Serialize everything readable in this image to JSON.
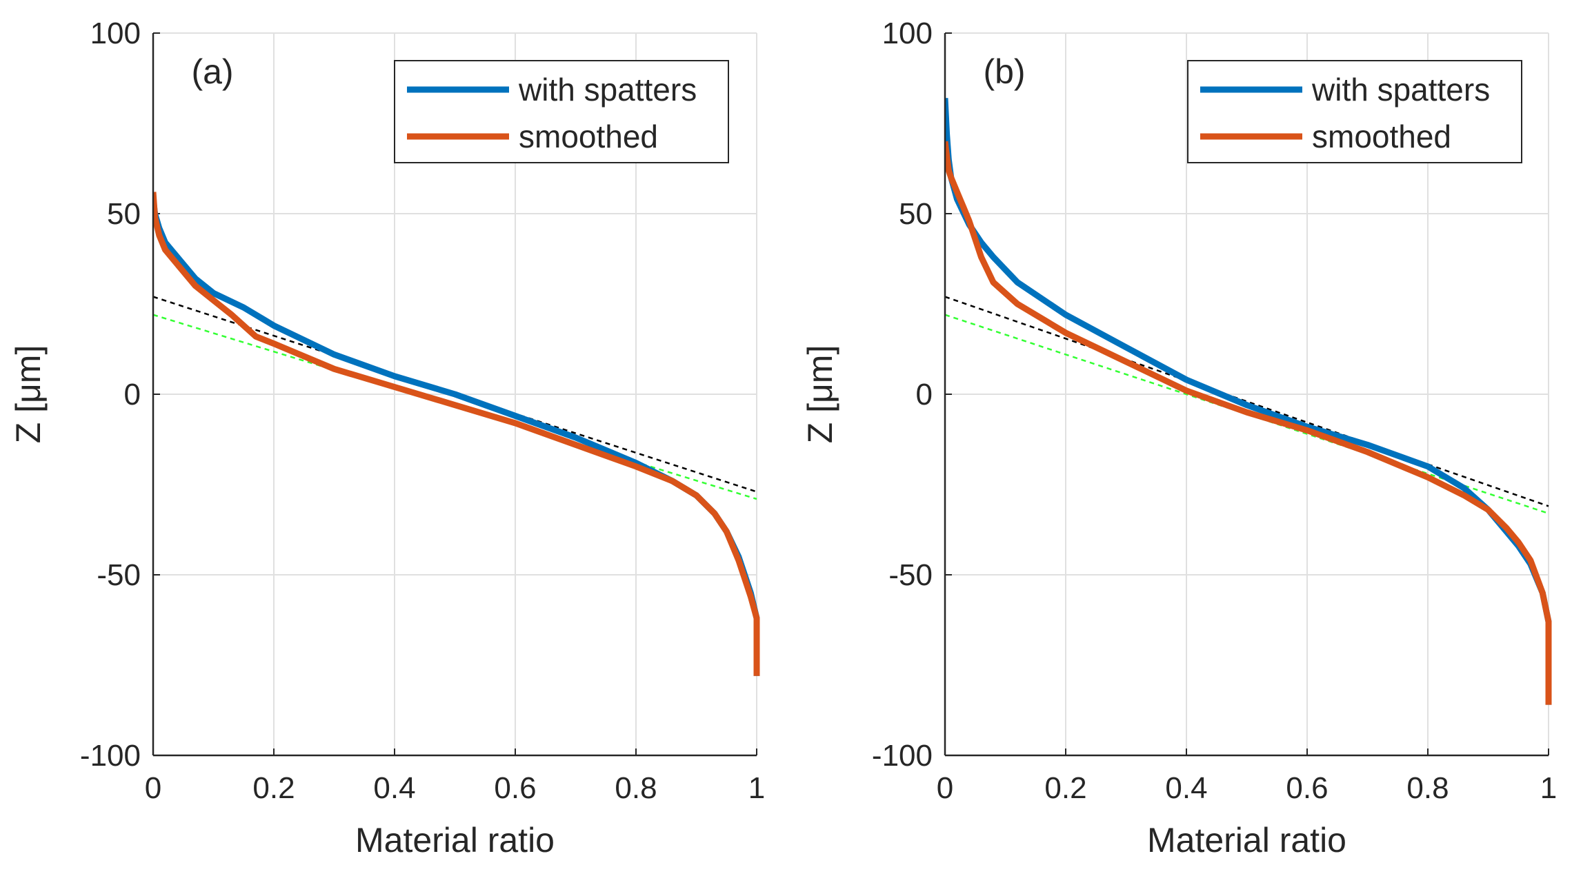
{
  "chart_data": [
    {
      "type": "line",
      "panel_label": "(a)",
      "xlabel": "Material ratio",
      "ylabel": "Z  [μm]",
      "xlim": [
        0,
        1
      ],
      "ylim": [
        -100,
        100
      ],
      "xticks": [
        "0",
        "0.2",
        "0.4",
        "0.6",
        "0.8",
        "1"
      ],
      "yticks": [
        "100",
        "50",
        "0",
        "-50",
        "-100"
      ],
      "grid": true,
      "legend_position": "top-right",
      "series": [
        {
          "name": "with spatters",
          "color": "#0072BD",
          "x": [
            0,
            0.003,
            0.01,
            0.02,
            0.04,
            0.07,
            0.1,
            0.15,
            0.2,
            0.3,
            0.4,
            0.5,
            0.6,
            0.7,
            0.8,
            0.86,
            0.9,
            0.93,
            0.95,
            0.97,
            0.99,
            1.0,
            1.0
          ],
          "y": [
            54,
            50,
            46,
            42,
            38,
            32,
            28,
            24,
            19,
            11,
            5,
            0,
            -6,
            -12,
            -19,
            -24,
            -28,
            -33,
            -38,
            -45,
            -55,
            -62,
            -78
          ]
        },
        {
          "name": "smoothed",
          "color": "#D95319",
          "x": [
            0,
            0.003,
            0.01,
            0.02,
            0.04,
            0.07,
            0.1,
            0.13,
            0.17,
            0.2,
            0.3,
            0.4,
            0.5,
            0.6,
            0.7,
            0.8,
            0.86,
            0.9,
            0.93,
            0.95,
            0.97,
            0.99,
            1.0,
            1.0
          ],
          "y": [
            56,
            49,
            44,
            40,
            36,
            30,
            26,
            22,
            16,
            14,
            7,
            2,
            -3,
            -8,
            -14,
            -20,
            -24,
            -28,
            -33,
            -38,
            -46,
            -56,
            -62,
            -78
          ]
        },
        {
          "color": "#000000",
          "dashed": true,
          "x": [
            0,
            1
          ],
          "y": [
            27,
            -27
          ]
        },
        {
          "color": "#33FF33",
          "dashed": true,
          "x": [
            0,
            1
          ],
          "y": [
            22,
            -29
          ]
        }
      ]
    },
    {
      "type": "line",
      "panel_label": "(b)",
      "xlabel": "Material ratio",
      "ylabel": "Z  [μm]",
      "xlim": [
        0,
        1
      ],
      "ylim": [
        -100,
        100
      ],
      "xticks": [
        "0",
        "0.2",
        "0.4",
        "0.6",
        "0.8",
        "1"
      ],
      "yticks": [
        "100",
        "50",
        "0",
        "-50",
        "-100"
      ],
      "grid": true,
      "legend_position": "top-right",
      "series": [
        {
          "name": "with spatters",
          "color": "#0072BD",
          "x": [
            0,
            0.003,
            0.006,
            0.01,
            0.02,
            0.04,
            0.06,
            0.08,
            0.12,
            0.2,
            0.3,
            0.4,
            0.5,
            0.6,
            0.7,
            0.8,
            0.86,
            0.9,
            0.93,
            0.95,
            0.97,
            0.99,
            1.0,
            1.0
          ],
          "y": [
            82,
            72,
            65,
            60,
            54,
            47,
            42,
            38,
            31,
            22,
            13,
            4,
            -3,
            -9,
            -14,
            -20,
            -26,
            -32,
            -38,
            -42,
            -47,
            -55,
            -63,
            -86
          ]
        },
        {
          "name": "smoothed",
          "color": "#D95319",
          "x": [
            0,
            0.003,
            0.006,
            0.01,
            0.02,
            0.03,
            0.04,
            0.06,
            0.08,
            0.12,
            0.2,
            0.3,
            0.4,
            0.5,
            0.6,
            0.7,
            0.8,
            0.86,
            0.9,
            0.93,
            0.95,
            0.97,
            0.99,
            1.0,
            1.0
          ],
          "y": [
            70,
            66,
            62,
            60,
            56,
            52,
            48,
            38,
            31,
            25,
            17,
            9,
            1,
            -5,
            -10,
            -16,
            -23,
            -28,
            -32,
            -37,
            -41,
            -46,
            -55,
            -63,
            -86
          ]
        },
        {
          "color": "#000000",
          "dashed": true,
          "x": [
            0,
            1
          ],
          "y": [
            27,
            -31
          ]
        },
        {
          "color": "#33FF33",
          "dashed": true,
          "x": [
            0,
            1
          ],
          "y": [
            22,
            -33
          ]
        }
      ]
    }
  ]
}
